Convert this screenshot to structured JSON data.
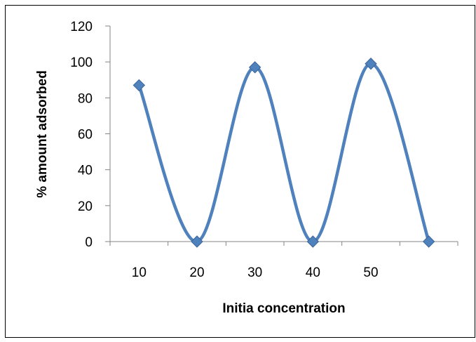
{
  "chart_data": {
    "type": "line",
    "title": "",
    "xlabel": "Initia concentration",
    "ylabel": "% amount adsorbed",
    "x_tick_labels": [
      "10",
      "20",
      "30",
      "40",
      "50"
    ],
    "y_tick_labels": [
      "0",
      "20",
      "40",
      "60",
      "80",
      "100",
      "120"
    ],
    "ylim": [
      0,
      120
    ],
    "grid": false,
    "legend": "none",
    "smooth": true,
    "series": [
      {
        "x": [
          10,
          20,
          30,
          40,
          50,
          60
        ],
        "values": [
          87,
          0,
          97,
          0,
          99,
          0
        ]
      }
    ],
    "colors": {
      "line": "#4f81bd",
      "marker": "#4f81bd",
      "axis": "#868686",
      "border": "#000000"
    },
    "marker": "diamond"
  }
}
